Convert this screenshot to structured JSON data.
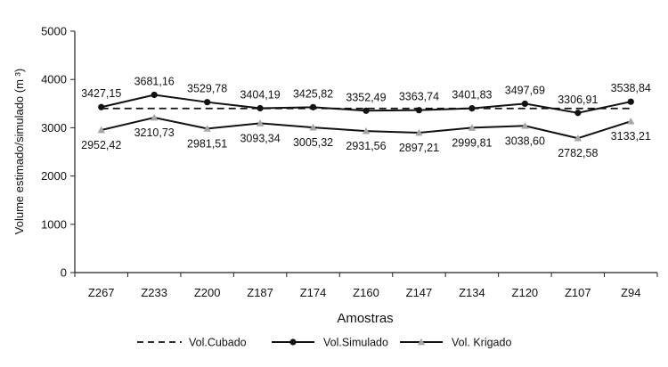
{
  "chart_data": {
    "type": "line",
    "title": "",
    "xlabel": "Amostras",
    "ylabel": "Volume estimado/simulado (m ³)",
    "ylim": [
      0,
      5000
    ],
    "yticks": [
      0,
      1000,
      2000,
      3000,
      4000,
      5000
    ],
    "grid": false,
    "legend_position": "bottom",
    "categories": [
      "Z267",
      "Z233",
      "Z200",
      "Z187",
      "Z174",
      "Z160",
      "Z147",
      "Z134",
      "Z120",
      "Z107",
      "Z94"
    ],
    "series": [
      {
        "name": "Vol.Cubado",
        "style": "dashed",
        "color": "#111111",
        "values": [
          3400,
          3400,
          3400,
          3400,
          3400,
          3400,
          3400,
          3400,
          3400,
          3400,
          3400
        ],
        "labels": []
      },
      {
        "name": "Vol.Simulado",
        "style": "solid-circle",
        "color": "#111111",
        "values": [
          3427.15,
          3681.16,
          3529.78,
          3404.19,
          3425.82,
          3352.49,
          3363.74,
          3401.83,
          3497.69,
          3306.91,
          3538.84
        ],
        "labels": [
          "3427,15",
          "3681,16",
          "3529,78",
          "3404,19",
          "3425,82",
          "3352,49",
          "3363,74",
          "3401,83",
          "3497,69",
          "3306,91",
          "3538,84"
        ]
      },
      {
        "name": "Vol. Krigado",
        "style": "solid-triangle",
        "color": "#111111",
        "marker_color": "#a6a6a6",
        "values": [
          2952.42,
          3210.73,
          2981.51,
          3093.34,
          3005.32,
          2931.56,
          2897.21,
          2999.81,
          3038.6,
          2782.58,
          3133.21
        ],
        "labels": [
          "2952,42",
          "3210,73",
          "2981,51",
          "3093,34",
          "3005,32",
          "2931,56",
          "2897,21",
          "2999,81",
          "3038,60",
          "2782,58",
          "3133,21"
        ]
      }
    ]
  }
}
